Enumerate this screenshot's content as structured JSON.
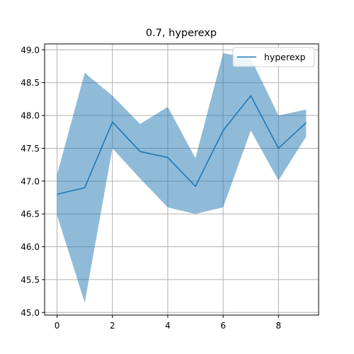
{
  "chart_data": {
    "type": "line",
    "title": "0.7, hyperexp",
    "xlabel": "",
    "ylabel": "",
    "xlim": [
      -0.45,
      9.45
    ],
    "ylim": [
      44.96,
      49.09
    ],
    "x_ticks": [
      0,
      2,
      4,
      6,
      8
    ],
    "y_ticks": [
      45.0,
      45.5,
      46.0,
      46.5,
      47.0,
      47.5,
      48.0,
      48.5,
      49.0
    ],
    "grid": true,
    "legend_position": "top-right",
    "x": [
      0,
      1,
      2,
      3,
      4,
      5,
      6,
      7,
      8,
      9
    ],
    "series": [
      {
        "name": "hyperexp",
        "color": "#1f77b4",
        "band_color": "#1f77b4",
        "values": [
          46.8,
          46.9,
          47.9,
          47.45,
          47.36,
          46.92,
          47.77,
          48.3,
          47.5,
          47.89
        ],
        "upper": [
          47.1,
          48.65,
          48.3,
          47.87,
          48.13,
          47.35,
          48.95,
          48.87,
          48.0,
          48.09
        ],
        "lower": [
          46.48,
          45.15,
          47.5,
          47.04,
          46.6,
          46.5,
          46.6,
          47.77,
          47.01,
          47.68
        ]
      }
    ]
  }
}
